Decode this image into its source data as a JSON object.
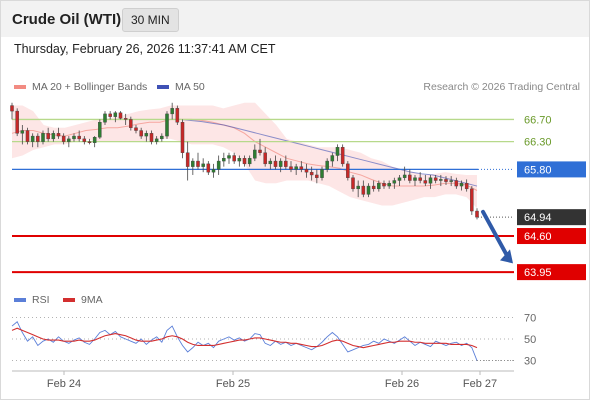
{
  "header": {
    "instrument": "Crude Oil (WTI)",
    "timeframe": "30 MIN",
    "datetime": "Thursday, February 26, 2026 11:37:41 AM CET",
    "credit": "Research © 2026 Trading Central"
  },
  "legend": {
    "bb_label": "MA 20 + Bollinger Bands",
    "ma50_label": "MA 50",
    "rsi_label": "RSI",
    "ma9_label": "9MA"
  },
  "colors": {
    "up": "#2e7d32",
    "down": "#c62828",
    "bollinger_fill": "#fde2e2",
    "ma20": "#f28b82",
    "ma50": "#3f51b5",
    "resistance": "#b7d98b",
    "pivot": "#2f6fd6",
    "support": "#e00000",
    "last": "#333333",
    "rsi": "#5b7fd8",
    "rsi_ma": "#d32f2f"
  },
  "chart_data": [
    {
      "type": "line",
      "title": "",
      "ylim": [
        63.7,
        67.05
      ],
      "x_ticks": [
        "Feb 24",
        "Feb 25",
        "Feb 26",
        "Feb 27"
      ],
      "candles_ohlc": [
        [
          66.95,
          67.0,
          66.7,
          66.85
        ],
        [
          66.85,
          66.9,
          66.4,
          66.45
        ],
        [
          66.45,
          66.6,
          66.25,
          66.5
        ],
        [
          66.5,
          66.55,
          66.25,
          66.3
        ],
        [
          66.3,
          66.45,
          66.2,
          66.4
        ],
        [
          66.4,
          66.45,
          66.2,
          66.3
        ],
        [
          66.3,
          66.5,
          66.25,
          66.45
        ],
        [
          66.45,
          66.55,
          66.3,
          66.35
        ],
        [
          66.35,
          66.5,
          66.3,
          66.45
        ],
        [
          66.45,
          66.55,
          66.35,
          66.4
        ],
        [
          66.4,
          66.45,
          66.25,
          66.3
        ],
        [
          66.3,
          66.4,
          66.2,
          66.35
        ],
        [
          66.35,
          66.45,
          66.3,
          66.4
        ],
        [
          66.4,
          66.5,
          66.3,
          66.35
        ],
        [
          66.35,
          66.4,
          66.25,
          66.3
        ],
        [
          66.3,
          66.35,
          66.25,
          66.28
        ],
        [
          66.28,
          66.4,
          66.2,
          66.38
        ],
        [
          66.38,
          66.7,
          66.35,
          66.65
        ],
        [
          66.65,
          66.85,
          66.6,
          66.8
        ],
        [
          66.8,
          66.85,
          66.7,
          66.75
        ],
        [
          66.75,
          66.85,
          66.65,
          66.82
        ],
        [
          66.82,
          66.85,
          66.7,
          66.72
        ],
        [
          66.72,
          66.8,
          66.6,
          66.7
        ],
        [
          66.7,
          66.75,
          66.5,
          66.55
        ],
        [
          66.55,
          66.6,
          66.45,
          66.5
        ],
        [
          66.5,
          66.55,
          66.35,
          66.4
        ],
        [
          66.4,
          66.5,
          66.3,
          66.45
        ],
        [
          66.45,
          66.5,
          66.25,
          66.3
        ],
        [
          66.3,
          66.4,
          66.25,
          66.35
        ],
        [
          66.35,
          66.45,
          66.3,
          66.4
        ],
        [
          66.4,
          66.85,
          66.35,
          66.8
        ],
        [
          66.8,
          67.0,
          66.7,
          66.9
        ],
        [
          66.9,
          66.95,
          66.6,
          66.65
        ],
        [
          66.65,
          66.7,
          66.0,
          66.1
        ],
        [
          66.1,
          66.3,
          65.6,
          65.85
        ],
        [
          65.85,
          66.0,
          65.7,
          65.95
        ],
        [
          65.95,
          66.1,
          65.8,
          65.85
        ],
        [
          65.85,
          66.0,
          65.75,
          65.9
        ],
        [
          65.9,
          65.95,
          65.7,
          65.75
        ],
        [
          65.75,
          65.9,
          65.65,
          65.8
        ],
        [
          65.8,
          66.05,
          65.7,
          65.95
        ],
        [
          65.95,
          66.1,
          65.85,
          66.0
        ],
        [
          66.0,
          66.1,
          65.9,
          66.05
        ],
        [
          66.05,
          66.1,
          65.9,
          65.95
        ],
        [
          65.95,
          66.05,
          65.85,
          66.0
        ],
        [
          66.0,
          66.05,
          65.85,
          65.9
        ],
        [
          65.9,
          66.05,
          65.85,
          66.0
        ],
        [
          66.0,
          66.25,
          65.95,
          66.15
        ],
        [
          66.15,
          66.35,
          66.05,
          66.1
        ],
        [
          66.1,
          66.2,
          65.85,
          65.9
        ],
        [
          65.9,
          66.0,
          65.8,
          65.95
        ],
        [
          65.95,
          66.05,
          65.8,
          65.85
        ],
        [
          65.85,
          66.0,
          65.75,
          65.95
        ],
        [
          65.95,
          66.05,
          65.8,
          65.85
        ],
        [
          65.85,
          65.95,
          65.75,
          65.8
        ],
        [
          65.8,
          65.9,
          65.7,
          65.85
        ],
        [
          65.85,
          65.95,
          65.75,
          65.8
        ],
        [
          65.8,
          65.9,
          65.65,
          65.75
        ],
        [
          65.75,
          65.85,
          65.6,
          65.7
        ],
        [
          65.7,
          65.8,
          65.55,
          65.65
        ],
        [
          65.65,
          65.85,
          65.6,
          65.8
        ],
        [
          65.8,
          66.0,
          65.75,
          65.95
        ],
        [
          65.95,
          66.1,
          65.85,
          66.05
        ],
        [
          66.05,
          66.25,
          65.95,
          66.2
        ],
        [
          66.2,
          66.25,
          65.85,
          65.9
        ],
        [
          65.9,
          65.95,
          65.6,
          65.65
        ],
        [
          65.65,
          65.7,
          65.4,
          65.45
        ],
        [
          65.45,
          65.6,
          65.3,
          65.5
        ],
        [
          65.5,
          65.6,
          65.3,
          65.35
        ],
        [
          65.35,
          65.55,
          65.3,
          65.5
        ],
        [
          65.5,
          65.6,
          65.4,
          65.45
        ],
        [
          65.45,
          65.6,
          65.4,
          65.55
        ],
        [
          65.55,
          65.6,
          65.45,
          65.5
        ],
        [
          65.5,
          65.6,
          65.45,
          65.55
        ],
        [
          65.55,
          65.65,
          65.45,
          65.6
        ],
        [
          65.6,
          65.7,
          65.5,
          65.65
        ],
        [
          65.65,
          65.85,
          65.6,
          65.7
        ],
        [
          65.7,
          65.8,
          65.55,
          65.6
        ],
        [
          65.6,
          65.7,
          65.5,
          65.65
        ],
        [
          65.65,
          65.75,
          65.55,
          65.6
        ],
        [
          65.6,
          65.7,
          65.5,
          65.55
        ],
        [
          65.55,
          65.7,
          65.45,
          65.65
        ],
        [
          65.65,
          65.7,
          65.55,
          65.6
        ],
        [
          65.6,
          65.7,
          65.5,
          65.62
        ],
        [
          65.62,
          65.68,
          65.52,
          65.58
        ],
        [
          65.58,
          65.68,
          65.5,
          65.6
        ],
        [
          65.6,
          65.65,
          65.45,
          65.5
        ],
        [
          65.5,
          65.6,
          65.42,
          65.55
        ],
        [
          65.55,
          65.62,
          65.4,
          65.45
        ],
        [
          65.45,
          65.5,
          64.98,
          65.05
        ],
        [
          65.05,
          65.1,
          64.9,
          64.94
        ]
      ],
      "bollinger": {
        "upper": [
          66.95,
          66.95,
          66.85,
          66.6,
          66.55,
          66.55,
          66.6,
          66.65,
          66.7,
          66.72,
          66.75,
          66.8,
          66.85,
          66.88,
          66.9,
          66.95,
          66.95,
          66.95,
          66.95,
          66.95,
          66.9,
          66.95,
          67.0,
          67.0,
          66.8,
          66.6,
          66.35,
          66.3,
          66.25,
          66.2,
          66.2,
          66.2,
          66.15,
          66.1,
          66.0,
          65.95,
          65.85,
          65.8,
          65.75,
          65.7,
          65.72,
          65.75,
          65.72,
          65.7,
          65.7
        ],
        "lower": [
          66.0,
          66.05,
          66.15,
          66.2,
          66.25,
          66.25,
          66.3,
          66.35,
          66.3,
          66.3,
          66.3,
          66.3,
          66.3,
          66.32,
          66.35,
          66.35,
          66.3,
          66.25,
          66.25,
          66.25,
          66.2,
          66.1,
          65.9,
          65.6,
          65.55,
          65.55,
          65.6,
          65.6,
          65.6,
          65.55,
          65.5,
          65.4,
          65.3,
          65.25,
          65.2,
          65.15,
          65.15,
          65.2,
          65.25,
          65.3,
          65.3,
          65.35,
          65.35,
          65.3,
          65.1
        ],
        "ma20": [
          66.45,
          66.5,
          66.5,
          66.45,
          66.42,
          66.4,
          66.45,
          66.5,
          66.52,
          66.55,
          66.55,
          66.58,
          66.62,
          66.65,
          66.65,
          66.7,
          66.7,
          66.7,
          66.68,
          66.65,
          66.6,
          66.55,
          66.45,
          66.3,
          66.2,
          66.1,
          66.0,
          65.95,
          65.9,
          65.87,
          65.85,
          65.82,
          65.75,
          65.7,
          65.62,
          65.55,
          65.5,
          65.5,
          65.5,
          65.5,
          65.52,
          65.55,
          65.55,
          65.52,
          65.42
        ]
      },
      "ma50": [
        66.7,
        66.68,
        66.66,
        66.63,
        66.6,
        66.55,
        66.5,
        66.45,
        66.4,
        66.35,
        66.3,
        66.25,
        66.2,
        66.15,
        66.1,
        66.05,
        66.0,
        65.95,
        65.9,
        65.85,
        65.8,
        65.75,
        65.72,
        65.7,
        65.65,
        65.6,
        65.55,
        65.5
      ],
      "levels": [
        {
          "value": 66.7,
          "label": "66.70",
          "kind": "resistance"
        },
        {
          "value": 66.3,
          "label": "66.30",
          "kind": "resistance"
        },
        {
          "value": 65.8,
          "label": "65.80",
          "kind": "pivot"
        },
        {
          "value": 64.94,
          "label": "64.94",
          "kind": "last"
        },
        {
          "value": 64.6,
          "label": "64.60",
          "kind": "support"
        },
        {
          "value": 63.95,
          "label": "63.95",
          "kind": "support"
        }
      ],
      "projection": {
        "from": 65.0,
        "to": 64.0,
        "direction": "down"
      }
    },
    {
      "type": "line",
      "title": "",
      "ylim": [
        25,
        75
      ],
      "y_ticks": [
        70,
        50,
        30
      ],
      "series": [
        {
          "name": "RSI",
          "values": [
            62,
            66,
            56,
            48,
            52,
            44,
            48,
            50,
            47,
            52,
            48,
            46,
            49,
            51,
            47,
            45,
            50,
            56,
            58,
            54,
            57,
            52,
            50,
            48,
            46,
            50,
            45,
            49,
            52,
            47,
            58,
            62,
            52,
            44,
            38,
            42,
            47,
            44,
            46,
            42,
            48,
            50,
            52,
            49,
            51,
            48,
            50,
            55,
            54,
            46,
            44,
            48,
            45,
            47,
            44,
            46,
            44,
            42,
            40,
            43,
            47,
            52,
            56,
            52,
            45,
            38,
            40,
            42,
            44,
            45,
            48,
            46,
            50,
            48,
            46,
            49,
            52,
            48,
            44,
            47,
            45,
            43,
            48,
            46,
            44,
            46,
            47,
            44,
            46,
            42,
            30
          ]
        },
        {
          "name": "9MA",
          "values": [
            58,
            60,
            58,
            56,
            54,
            52,
            50,
            49,
            49,
            49,
            48,
            48,
            48,
            49,
            48,
            48,
            49,
            51,
            53,
            54,
            55,
            54,
            53,
            51,
            49,
            48,
            48,
            48,
            49,
            50,
            52,
            53,
            52,
            50,
            47,
            45,
            44,
            44,
            44,
            44,
            45,
            46,
            47,
            48,
            49,
            49,
            50,
            51,
            51,
            50,
            49,
            48,
            47,
            47,
            46,
            46,
            45,
            44,
            43,
            43,
            44,
            46,
            48,
            49,
            48,
            46,
            44,
            43,
            42,
            43,
            44,
            45,
            46,
            47,
            47,
            48,
            48,
            48,
            47,
            47,
            46,
            46,
            46,
            46,
            46,
            45,
            45,
            45,
            45,
            44,
            42
          ]
        }
      ]
    }
  ]
}
